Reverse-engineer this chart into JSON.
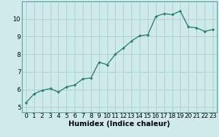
{
  "x": [
    0,
    1,
    2,
    3,
    4,
    5,
    6,
    7,
    8,
    9,
    10,
    11,
    12,
    13,
    14,
    15,
    16,
    17,
    18,
    19,
    20,
    21,
    22,
    23
  ],
  "y": [
    5.25,
    5.75,
    5.95,
    6.05,
    5.85,
    6.15,
    6.25,
    6.6,
    6.65,
    7.55,
    7.4,
    8.0,
    8.35,
    8.75,
    9.05,
    9.1,
    10.15,
    10.3,
    10.25,
    10.45,
    9.55,
    9.5,
    9.3,
    9.4
  ],
  "xlabel": "Humidex (Indice chaleur)",
  "xlim": [
    -0.5,
    23.5
  ],
  "ylim": [
    4.7,
    11.0
  ],
  "yticks": [
    5,
    6,
    7,
    8,
    9,
    10
  ],
  "xticks": [
    0,
    1,
    2,
    3,
    4,
    5,
    6,
    7,
    8,
    9,
    10,
    11,
    12,
    13,
    14,
    15,
    16,
    17,
    18,
    19,
    20,
    21,
    22,
    23
  ],
  "line_color": "#2e7d6d",
  "bg_color": "#ceeaea",
  "grid_color": "#aacccc",
  "marker": "D",
  "marker_size": 2.0,
  "line_width": 1.0,
  "xlabel_fontsize": 7.5,
  "tick_fontsize": 6.5
}
